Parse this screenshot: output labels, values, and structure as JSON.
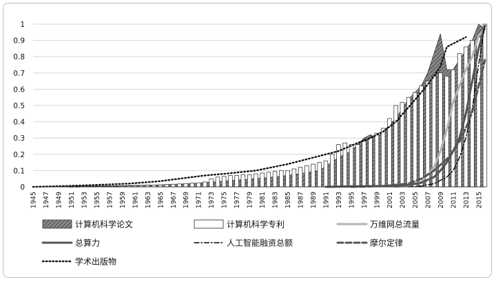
{
  "chart_data": {
    "type": "area",
    "title": "",
    "xlabel": "",
    "ylabel": "",
    "xlim": [
      1945,
      2016
    ],
    "ylim": [
      0,
      1
    ],
    "yticks": [
      "0",
      "0.1",
      "0.2",
      "0.3",
      "0.4",
      "0.5",
      "0.6",
      "0.7",
      "0.8",
      "0.9",
      "1"
    ],
    "xticks": [
      "1945",
      "1947",
      "1949",
      "1951",
      "1953",
      "1955",
      "1957",
      "1959",
      "1961",
      "1963",
      "1965",
      "1967",
      "1969",
      "1971",
      "1973",
      "1975",
      "1977",
      "1979",
      "1981",
      "1983",
      "1985",
      "1987",
      "1989",
      "1991",
      "1993",
      "1995",
      "1997",
      "1999",
      "2001",
      "2003",
      "2005",
      "2007",
      "2009",
      "2011",
      "2013",
      "2015"
    ],
    "grid": "horizontal",
    "legend_position": "bottom",
    "colors": {
      "papers": "#555555",
      "patents": "#ffffff",
      "web_traffic": "#b3b3b3",
      "compute": "#555555",
      "ai_funding": "#000000",
      "moore": "#555555",
      "publications": "#111111"
    },
    "series": [
      {
        "name": "计算机科学论文",
        "key": "papers",
        "style": "hatched-area",
        "points": [
          [
            1945,
            0
          ],
          [
            1950,
            0.003
          ],
          [
            1955,
            0.005
          ],
          [
            1960,
            0.008
          ],
          [
            1965,
            0.012
          ],
          [
            1970,
            0.02
          ],
          [
            1975,
            0.035
          ],
          [
            1980,
            0.05
          ],
          [
            1985,
            0.07
          ],
          [
            1990,
            0.1
          ],
          [
            1993,
            0.18
          ],
          [
            1995,
            0.22
          ],
          [
            1996,
            0.26
          ],
          [
            1997,
            0.3
          ],
          [
            1998,
            0.32
          ],
          [
            1999,
            0.3
          ],
          [
            2000,
            0.34
          ],
          [
            2001,
            0.38
          ],
          [
            2002,
            0.42
          ],
          [
            2003,
            0.48
          ],
          [
            2004,
            0.54
          ],
          [
            2005,
            0.58
          ],
          [
            2006,
            0.62
          ],
          [
            2007,
            0.7
          ],
          [
            2008,
            0.82
          ],
          [
            2009,
            0.94
          ],
          [
            2010,
            0.72
          ],
          [
            2011,
            0.72
          ],
          [
            2012,
            0.78
          ],
          [
            2013,
            0.84
          ],
          [
            2014,
            0.9
          ],
          [
            2015,
            1.0
          ],
          [
            2016,
            0.97
          ]
        ]
      },
      {
        "name": "计算机科学专利",
        "key": "patents",
        "style": "bars",
        "years": [
          1945,
          1946,
          1947,
          1948,
          1949,
          1950,
          1951,
          1952,
          1953,
          1954,
          1955,
          1956,
          1957,
          1958,
          1959,
          1960,
          1961,
          1962,
          1963,
          1964,
          1965,
          1966,
          1967,
          1968,
          1969,
          1970,
          1971,
          1972,
          1973,
          1974,
          1975,
          1976,
          1977,
          1978,
          1979,
          1980,
          1981,
          1982,
          1983,
          1984,
          1985,
          1986,
          1987,
          1988,
          1989,
          1990,
          1991,
          1992,
          1993,
          1994,
          1995,
          1996,
          1997,
          1998,
          1999,
          2000,
          2001,
          2002,
          2003,
          2004,
          2005,
          2006,
          2007,
          2008,
          2009,
          2010,
          2011,
          2012,
          2013,
          2014,
          2015,
          2016
        ],
        "values": [
          0,
          0,
          0,
          0,
          0,
          0,
          0.001,
          0.001,
          0.002,
          0.002,
          0.003,
          0.003,
          0.004,
          0.004,
          0.005,
          0.006,
          0.007,
          0.008,
          0.01,
          0.011,
          0.012,
          0.014,
          0.016,
          0.018,
          0.02,
          0.023,
          0.025,
          0.03,
          0.05,
          0.06,
          0.065,
          0.07,
          0.07,
          0.075,
          0.075,
          0.08,
          0.085,
          0.09,
          0.095,
          0.1,
          0.1,
          0.11,
          0.12,
          0.13,
          0.14,
          0.15,
          0.16,
          0.2,
          0.26,
          0.27,
          0.26,
          0.26,
          0.28,
          0.3,
          0.33,
          0.36,
          0.42,
          0.5,
          0.52,
          0.55,
          0.58,
          0.62,
          0.65,
          0.68,
          0.7,
          0.68,
          0.72,
          0.82,
          0.86,
          0.9,
          0.92,
          1.0
        ]
      },
      {
        "name": "万维网总流量",
        "key": "web_traffic",
        "style": "solid-light",
        "points": [
          [
            2002,
            0.0
          ],
          [
            2004,
            0.01
          ],
          [
            2006,
            0.03
          ],
          [
            2008,
            0.12
          ],
          [
            2009,
            0.22
          ],
          [
            2010,
            0.35
          ],
          [
            2011,
            0.52
          ],
          [
            2012,
            0.62
          ],
          [
            2013,
            0.72
          ],
          [
            2014,
            0.8
          ],
          [
            2015,
            0.93
          ],
          [
            2016,
            0.97
          ]
        ]
      },
      {
        "name": "总算力",
        "key": "compute",
        "style": "solid-dark",
        "points": [
          [
            1991,
            0.0
          ],
          [
            1995,
            0.003
          ],
          [
            2000,
            0.005
          ],
          [
            2004,
            0.012
          ],
          [
            2006,
            0.025
          ],
          [
            2008,
            0.06
          ],
          [
            2009,
            0.1
          ],
          [
            2010,
            0.15
          ],
          [
            2011,
            0.22
          ],
          [
            2012,
            0.3
          ],
          [
            2013,
            0.45
          ],
          [
            2014,
            0.65
          ],
          [
            2015,
            0.85
          ],
          [
            2016,
            0.99
          ]
        ]
      },
      {
        "name": "人工智能融资总额",
        "key": "ai_funding",
        "style": "dash-dot",
        "points": [
          [
            2004,
            0.0
          ],
          [
            2006,
            0.005
          ],
          [
            2008,
            0.02
          ],
          [
            2010,
            0.06
          ],
          [
            2011,
            0.1
          ],
          [
            2012,
            0.18
          ],
          [
            2013,
            0.3
          ],
          [
            2014,
            0.48
          ],
          [
            2015,
            0.75
          ],
          [
            2016,
            1.0
          ]
        ]
      },
      {
        "name": "摩尔定律",
        "key": "moore",
        "style": "dashed",
        "points": [
          [
            1995,
            0.0
          ],
          [
            2000,
            0.005
          ],
          [
            2004,
            0.02
          ],
          [
            2006,
            0.05
          ],
          [
            2008,
            0.1
          ],
          [
            2010,
            0.17
          ],
          [
            2011,
            0.22
          ],
          [
            2012,
            0.28
          ],
          [
            2013,
            0.36
          ],
          [
            2014,
            0.46
          ],
          [
            2015,
            0.62
          ],
          [
            2016,
            0.78
          ]
        ]
      },
      {
        "name": "学术出版物",
        "key": "publications",
        "style": "dotted",
        "points": [
          [
            1945,
            0
          ],
          [
            1950,
            0.005
          ],
          [
            1955,
            0.012
          ],
          [
            1960,
            0.02
          ],
          [
            1965,
            0.035
          ],
          [
            1970,
            0.06
          ],
          [
            1972,
            0.07
          ],
          [
            1975,
            0.08
          ],
          [
            1980,
            0.1
          ],
          [
            1985,
            0.14
          ],
          [
            1990,
            0.19
          ],
          [
            1993,
            0.22
          ],
          [
            1996,
            0.27
          ],
          [
            1998,
            0.3
          ],
          [
            2000,
            0.34
          ],
          [
            2002,
            0.4
          ],
          [
            2004,
            0.49
          ],
          [
            2006,
            0.58
          ],
          [
            2008,
            0.68
          ],
          [
            2009,
            0.74
          ],
          [
            2010,
            0.86
          ],
          [
            2011,
            0.88
          ],
          [
            2012,
            0.9
          ],
          [
            2013,
            0.92
          ]
        ]
      }
    ]
  }
}
